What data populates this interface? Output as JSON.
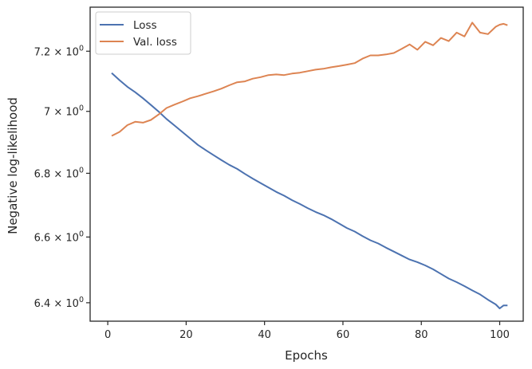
{
  "chart_data": {
    "type": "line",
    "xlabel": "Epochs",
    "ylabel": "Negative log-likelihood",
    "xlim": [
      -4.5,
      106
    ],
    "ylim": [
      6.345,
      7.35
    ],
    "yscale": "log",
    "grid": false,
    "legend_position": "top-left",
    "x_ticks": [
      0,
      20,
      40,
      60,
      80,
      100
    ],
    "x_tick_labels": [
      "0",
      "20",
      "40",
      "60",
      "80",
      "100"
    ],
    "y_ticks": [
      6.4,
      6.6,
      6.8,
      7.0,
      7.2
    ],
    "y_tick_labels": [
      {
        "mantissa": "6.4",
        "base": "10",
        "exp": "0"
      },
      {
        "mantissa": "6.6",
        "base": "10",
        "exp": "0"
      },
      {
        "mantissa": "6.8",
        "base": "10",
        "exp": "0"
      },
      {
        "mantissa": "7",
        "base": "10",
        "exp": "0"
      },
      {
        "mantissa": "7.2",
        "base": "10",
        "exp": "0"
      }
    ],
    "x": [
      1,
      3,
      5,
      7,
      9,
      11,
      13,
      15,
      17,
      19,
      21,
      23,
      25,
      27,
      29,
      31,
      33,
      35,
      37,
      39,
      41,
      43,
      45,
      47,
      49,
      51,
      53,
      55,
      57,
      59,
      61,
      63,
      65,
      67,
      69,
      71,
      73,
      75,
      77,
      79,
      81,
      83,
      85,
      87,
      89,
      91,
      93,
      95,
      97,
      99,
      100,
      101,
      102
    ],
    "series": [
      {
        "name": "Loss",
        "color": "#4c72b0",
        "values": [
          7.127,
          7.103,
          7.081,
          7.063,
          7.043,
          7.021,
          6.999,
          6.975,
          6.954,
          6.933,
          6.912,
          6.891,
          6.874,
          6.858,
          6.842,
          6.827,
          6.814,
          6.798,
          6.783,
          6.769,
          6.755,
          6.741,
          6.729,
          6.715,
          6.703,
          6.69,
          6.678,
          6.668,
          6.656,
          6.642,
          6.628,
          6.617,
          6.603,
          6.59,
          6.58,
          6.567,
          6.555,
          6.543,
          6.531,
          6.523,
          6.513,
          6.501,
          6.487,
          6.473,
          6.462,
          6.45,
          6.437,
          6.425,
          6.409,
          6.395,
          6.383,
          6.392,
          6.392
        ]
      },
      {
        "name": "Val. loss",
        "color": "#dd8452",
        "values": [
          6.92,
          6.933,
          6.955,
          6.966,
          6.963,
          6.972,
          6.99,
          7.011,
          7.022,
          7.032,
          7.043,
          7.05,
          7.058,
          7.066,
          7.075,
          7.086,
          7.096,
          7.099,
          7.108,
          7.113,
          7.12,
          7.122,
          7.12,
          7.125,
          7.128,
          7.133,
          7.138,
          7.141,
          7.146,
          7.15,
          7.155,
          7.16,
          7.175,
          7.186,
          7.186,
          7.189,
          7.194,
          7.208,
          7.223,
          7.205,
          7.232,
          7.22,
          7.245,
          7.234,
          7.263,
          7.25,
          7.297,
          7.263,
          7.258,
          7.283,
          7.29,
          7.293,
          7.288
        ]
      }
    ]
  }
}
